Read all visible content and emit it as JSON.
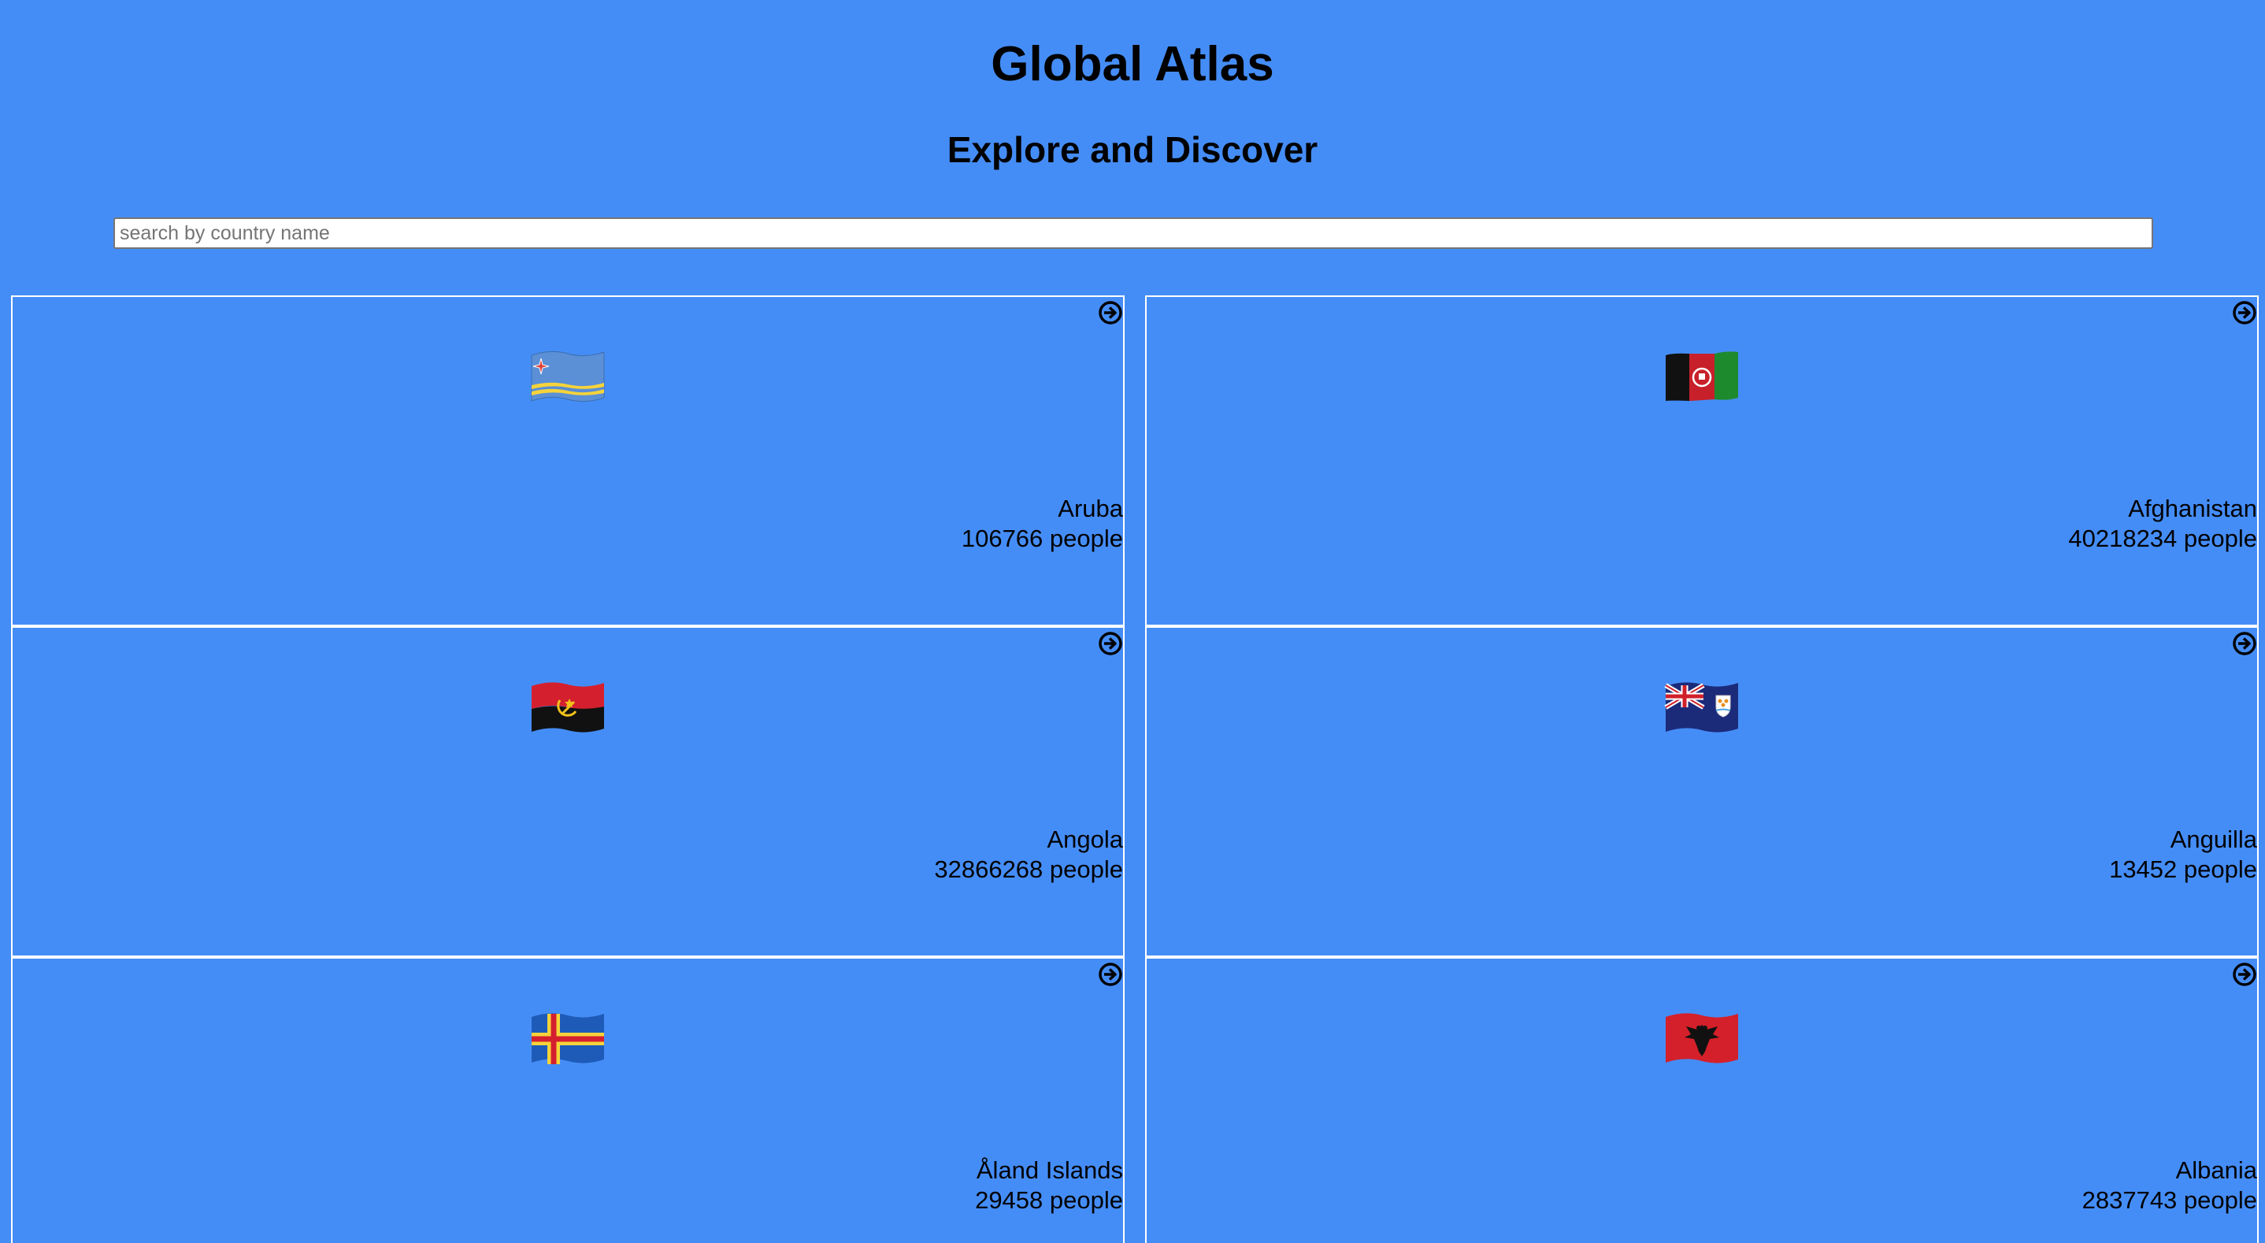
{
  "header": {
    "title": "Global Atlas",
    "subtitle": "Explore and Discover"
  },
  "search": {
    "placeholder": "search by country name",
    "value": ""
  },
  "countries": [
    {
      "name": "Aruba",
      "population": "106766 people",
      "flag_icon": "aruba-flag-icon"
    },
    {
      "name": "Afghanistan",
      "population": "40218234 people",
      "flag_icon": "afghanistan-flag-icon"
    },
    {
      "name": "Angola",
      "population": "32866268 people",
      "flag_icon": "angola-flag-icon"
    },
    {
      "name": "Anguilla",
      "population": "13452 people",
      "flag_icon": "anguilla-flag-icon"
    },
    {
      "name": "Åland Islands",
      "population": "29458 people",
      "flag_icon": "aland-islands-flag-icon"
    },
    {
      "name": "Albania",
      "population": "2837743 people",
      "flag_icon": "albania-flag-icon"
    }
  ],
  "colors": {
    "background": "#458df6",
    "card_border": "#ffffff",
    "text": "#000000"
  },
  "icons": {
    "card_action": "arrow-circle-right-icon"
  }
}
